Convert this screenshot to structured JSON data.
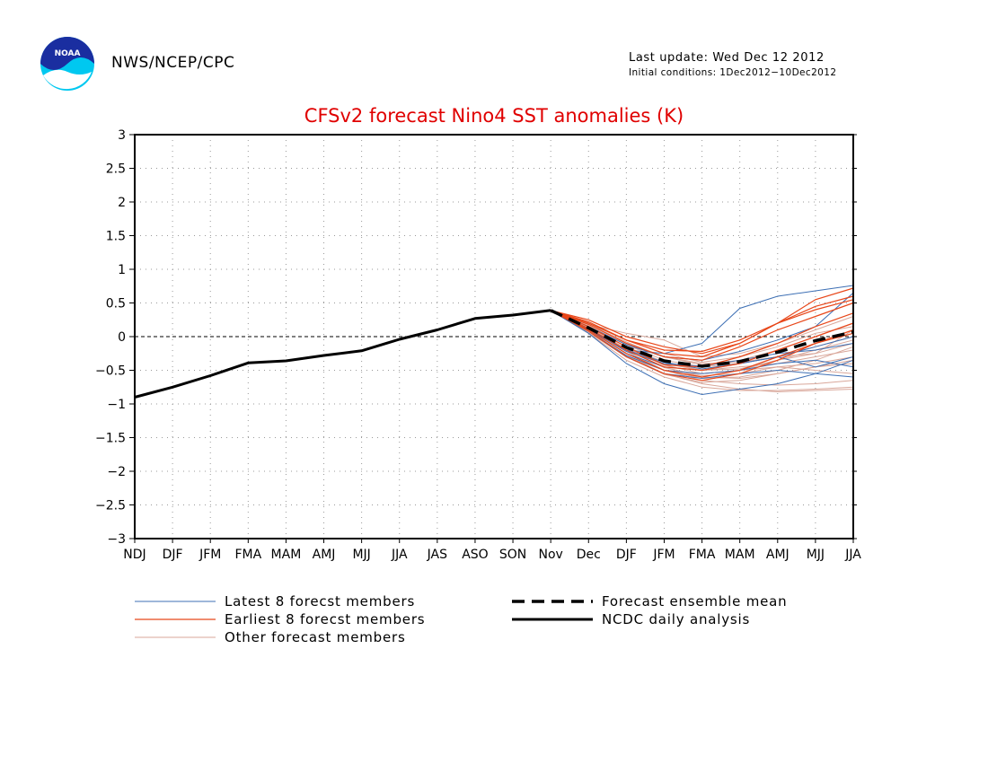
{
  "header": {
    "org": "NWS/NCEP/CPC",
    "last_update": "Last update: Wed Dec 12 2012",
    "initial_conditions": "Initial conditions: 1Dec2012−10Dec2012",
    "logo_text": "NOAA"
  },
  "colors": {
    "title": "#e00000",
    "latest": "#3d6fb4",
    "earliest": "#e8471a",
    "other": "#d9a79a",
    "analysis": "#000000",
    "grid": "#999999"
  },
  "chart_data": {
    "type": "line",
    "title": "CFSv2 forecast Nino4 SST anomalies (K)",
    "xlabel": "",
    "ylabel": "",
    "x_categories": [
      "NDJ",
      "DJF",
      "JFM",
      "FMA",
      "MAM",
      "AMJ",
      "MJJ",
      "JJA",
      "JAS",
      "ASO",
      "SON",
      "Nov",
      "Dec",
      "DJF",
      "JFM",
      "FMA",
      "MAM",
      "AMJ",
      "MJJ",
      "JJA"
    ],
    "ylim": [
      -3,
      3
    ],
    "yticks": [
      "3",
      "2.5",
      "2",
      "1.5",
      "1",
      "0.5",
      "0",
      "−0.5",
      "−1",
      "−1.5",
      "−2",
      "−2.5",
      "−3"
    ],
    "grid": true,
    "zero_line": true,
    "legend_position": "bottom",
    "legend": [
      {
        "label": "Latest 8 forecst members",
        "style": "latest"
      },
      {
        "label": "Earliest 8 forecst members",
        "style": "earliest"
      },
      {
        "label": "Other forecast members",
        "style": "other"
      },
      {
        "label": "Forecast ensemble mean",
        "style": "mean"
      },
      {
        "label": "NCDC daily analysis",
        "style": "analysis"
      }
    ],
    "analysis": {
      "x_index": [
        0,
        1,
        2,
        3,
        4,
        5,
        6,
        7,
        8,
        9,
        10,
        11
      ],
      "values": [
        -0.9,
        -0.75,
        -0.58,
        -0.39,
        -0.36,
        -0.28,
        -0.21,
        -0.04,
        0.1,
        0.27,
        0.32,
        0.39
      ]
    },
    "ensemble_mean": {
      "x_index": [
        11,
        12,
        13,
        14,
        15,
        16,
        17,
        18,
        19
      ],
      "values": [
        0.39,
        0.13,
        -0.16,
        -0.36,
        -0.44,
        -0.37,
        -0.23,
        -0.06,
        0.07
      ]
    },
    "members": {
      "x_index": [
        11,
        12,
        13,
        14,
        15,
        16,
        17,
        18,
        19
      ],
      "latest": [
        [
          0.39,
          0.12,
          -0.2,
          -0.25,
          -0.1,
          0.42,
          0.6,
          0.68,
          0.76
        ],
        [
          0.39,
          0.05,
          -0.4,
          -0.7,
          -0.86,
          -0.78,
          -0.7,
          -0.55,
          -0.35
        ],
        [
          0.39,
          0.08,
          -0.3,
          -0.55,
          -0.62,
          -0.55,
          -0.5,
          -0.55,
          -0.6
        ],
        [
          0.39,
          0.15,
          -0.12,
          -0.3,
          -0.35,
          -0.22,
          -0.05,
          0.15,
          0.65
        ],
        [
          0.39,
          0.1,
          -0.25,
          -0.45,
          -0.5,
          -0.4,
          -0.3,
          -0.45,
          -0.3
        ],
        [
          0.39,
          0.12,
          -0.22,
          -0.4,
          -0.44,
          -0.35,
          -0.25,
          -0.2,
          -0.1
        ],
        [
          0.39,
          0.1,
          -0.2,
          -0.38,
          -0.48,
          -0.4,
          -0.3,
          -0.15,
          0.0
        ],
        [
          0.39,
          0.08,
          -0.28,
          -0.5,
          -0.55,
          -0.5,
          -0.4,
          -0.35,
          -0.45
        ]
      ],
      "earliest": [
        [
          0.39,
          0.22,
          -0.05,
          -0.2,
          -0.22,
          -0.05,
          0.2,
          0.55,
          0.72
        ],
        [
          0.39,
          0.2,
          -0.05,
          -0.25,
          -0.3,
          -0.1,
          0.2,
          0.4,
          0.55
        ],
        [
          0.39,
          0.18,
          -0.1,
          -0.3,
          -0.35,
          -0.15,
          0.1,
          0.3,
          0.5
        ],
        [
          0.39,
          0.15,
          -0.15,
          -0.42,
          -0.45,
          -0.3,
          -0.1,
          0.15,
          0.35
        ],
        [
          0.39,
          0.25,
          0.0,
          -0.15,
          -0.25,
          -0.1,
          0.2,
          0.45,
          0.6
        ],
        [
          0.39,
          0.1,
          -0.25,
          -0.5,
          -0.6,
          -0.5,
          -0.3,
          -0.1,
          0.1
        ],
        [
          0.39,
          0.12,
          -0.2,
          -0.45,
          -0.5,
          -0.4,
          -0.2,
          0.0,
          0.2
        ],
        [
          0.39,
          0.08,
          -0.3,
          -0.55,
          -0.65,
          -0.55,
          -0.35,
          -0.1,
          0.05
        ]
      ],
      "other": [
        [
          0.39,
          0.2,
          -0.1,
          -0.3,
          -0.42,
          -0.35,
          -0.2,
          0.0,
          0.2
        ],
        [
          0.39,
          0.15,
          -0.2,
          -0.45,
          -0.6,
          -0.62,
          -0.55,
          -0.45,
          -0.4
        ],
        [
          0.39,
          0.1,
          -0.25,
          -0.5,
          -0.65,
          -0.7,
          -0.72,
          -0.7,
          -0.65
        ],
        [
          0.39,
          0.12,
          -0.18,
          -0.42,
          -0.55,
          -0.5,
          -0.35,
          -0.2,
          -0.05
        ],
        [
          0.39,
          0.18,
          0.05,
          -0.05,
          -0.3,
          -0.25,
          -0.1,
          0.1,
          0.3
        ],
        [
          0.39,
          0.05,
          -0.35,
          -0.6,
          -0.75,
          -0.8,
          -0.8,
          -0.78,
          -0.75
        ],
        [
          0.39,
          0.14,
          -0.15,
          -0.38,
          -0.5,
          -0.45,
          -0.4,
          -0.3,
          -0.2
        ],
        [
          0.39,
          0.1,
          -0.22,
          -0.5,
          -0.62,
          -0.6,
          -0.5,
          -0.35,
          -0.15
        ],
        [
          0.39,
          0.16,
          -0.12,
          -0.35,
          -0.45,
          -0.4,
          -0.3,
          -0.25,
          -0.1
        ],
        [
          0.39,
          0.08,
          -0.28,
          -0.55,
          -0.7,
          -0.78,
          -0.82,
          -0.8,
          -0.78
        ],
        [
          0.39,
          0.2,
          -0.05,
          -0.25,
          -0.38,
          -0.3,
          -0.15,
          0.05,
          0.15
        ],
        [
          0.39,
          0.12,
          -0.2,
          -0.46,
          -0.58,
          -0.55,
          -0.45,
          -0.4,
          -0.3
        ],
        [
          0.39,
          0.1,
          -0.3,
          -0.5,
          -0.55,
          -0.5,
          -0.45,
          -0.5,
          -0.55
        ],
        [
          0.39,
          0.14,
          -0.18,
          -0.4,
          -0.5,
          -0.48,
          -0.35,
          -0.25,
          0.1
        ],
        [
          0.39,
          0.06,
          -0.3,
          -0.56,
          -0.68,
          -0.65,
          -0.55,
          -0.45,
          -0.35
        ],
        [
          0.39,
          0.18,
          -0.08,
          -0.3,
          -0.4,
          -0.38,
          -0.3,
          -0.15,
          0.0
        ]
      ]
    }
  }
}
